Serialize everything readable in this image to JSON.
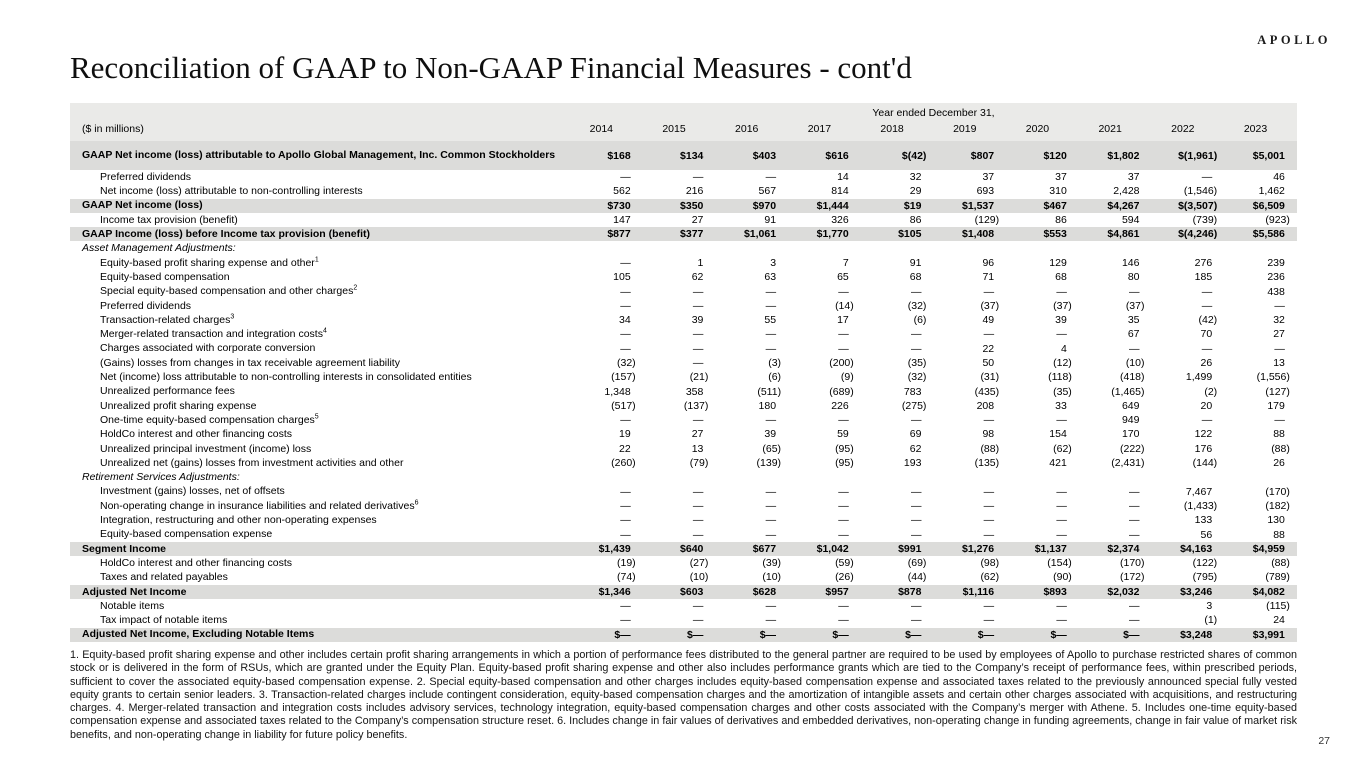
{
  "page": {
    "logo": "APOLLO",
    "title": "Reconciliation of GAAP to Non-GAAP Financial Measures - cont'd",
    "page_number": "27"
  },
  "table": {
    "header": {
      "group_label": "Year ended December 31,",
      "unit_label": "($ in millions)",
      "years": [
        "2014",
        "2015",
        "2016",
        "2017",
        "2018",
        "2019",
        "2020",
        "2021",
        "2022",
        "2023"
      ]
    },
    "rows": [
      {
        "label": "GAAP Net income (loss) attributable to Apollo Global Management, Inc. Common Stockholders",
        "style": "total",
        "values": [
          "$168",
          "$134",
          "$403",
          "$616",
          "$(42)",
          "$807",
          "$120",
          "$1,802",
          "$(1,961)",
          "$5,001"
        ]
      },
      {
        "label": "Preferred dividends",
        "style": "item",
        "values": [
          "—",
          "—",
          "—",
          "14",
          "32",
          "37",
          "37",
          "37",
          "—",
          "46"
        ]
      },
      {
        "label": "Net income (loss) attributable to non-controlling interests",
        "style": "item",
        "values": [
          "562",
          "216",
          "567",
          "814",
          "29",
          "693",
          "310",
          "2,428",
          "(1,546)",
          "1,462"
        ]
      },
      {
        "label": "GAAP Net income (loss)",
        "style": "total",
        "values": [
          "$730",
          "$350",
          "$970",
          "$1,444",
          "$19",
          "$1,537",
          "$467",
          "$4,267",
          "$(3,507)",
          "$6,509"
        ]
      },
      {
        "label": "Income tax provision (benefit)",
        "style": "item",
        "values": [
          "147",
          "27",
          "91",
          "326",
          "86",
          "(129)",
          "86",
          "594",
          "(739)",
          "(923)"
        ]
      },
      {
        "label": "GAAP Income (loss) before Income tax provision (benefit)",
        "style": "total",
        "values": [
          "$877",
          "$377",
          "$1,061",
          "$1,770",
          "$105",
          "$1,408",
          "$553",
          "$4,861",
          "$(4,246)",
          "$5,586"
        ]
      },
      {
        "label": "Asset Management Adjustments:",
        "style": "section"
      },
      {
        "label": "Equity-based profit sharing expense and other",
        "sup": "1",
        "style": "item",
        "values": [
          "—",
          "1",
          "3",
          "7",
          "91",
          "96",
          "129",
          "146",
          "276",
          "239"
        ]
      },
      {
        "label": "Equity-based compensation",
        "style": "item",
        "values": [
          "105",
          "62",
          "63",
          "65",
          "68",
          "71",
          "68",
          "80",
          "185",
          "236"
        ]
      },
      {
        "label": "Special equity-based compensation and other charges",
        "sup": "2",
        "style": "item",
        "values": [
          "—",
          "—",
          "—",
          "—",
          "—",
          "—",
          "—",
          "—",
          "—",
          "438"
        ]
      },
      {
        "label": "Preferred dividends",
        "style": "item",
        "values": [
          "—",
          "—",
          "—",
          "(14)",
          "(32)",
          "(37)",
          "(37)",
          "(37)",
          "—",
          "—"
        ]
      },
      {
        "label": "Transaction-related charges",
        "sup": "3",
        "style": "item",
        "values": [
          "34",
          "39",
          "55",
          "17",
          "(6)",
          "49",
          "39",
          "35",
          "(42)",
          "32"
        ]
      },
      {
        "label": "Merger-related transaction and integration costs",
        "sup": "4",
        "style": "item",
        "values": [
          "—",
          "—",
          "—",
          "—",
          "—",
          "—",
          "—",
          "67",
          "70",
          "27"
        ]
      },
      {
        "label": "Charges associated with corporate conversion",
        "style": "item",
        "values": [
          "—",
          "—",
          "—",
          "—",
          "—",
          "22",
          "4",
          "—",
          "—",
          "—"
        ]
      },
      {
        "label": "(Gains) losses from changes in tax receivable agreement liability",
        "style": "item",
        "values": [
          "(32)",
          "—",
          "(3)",
          "(200)",
          "(35)",
          "50",
          "(12)",
          "(10)",
          "26",
          "13"
        ]
      },
      {
        "label": "Net (income) loss attributable to non-controlling interests in consolidated entities",
        "style": "item",
        "values": [
          "(157)",
          "(21)",
          "(6)",
          "(9)",
          "(32)",
          "(31)",
          "(118)",
          "(418)",
          "1,499",
          "(1,556)"
        ]
      },
      {
        "label": "Unrealized performance fees",
        "style": "item",
        "values": [
          "1,348",
          "358",
          "(511)",
          "(689)",
          "783",
          "(435)",
          "(35)",
          "(1,465)",
          "(2)",
          "(127)"
        ]
      },
      {
        "label": "Unrealized profit sharing expense",
        "style": "item",
        "values": [
          "(517)",
          "(137)",
          "180",
          "226",
          "(275)",
          "208",
          "33",
          "649",
          "20",
          "179"
        ]
      },
      {
        "label": "One-time equity-based compensation charges",
        "sup": "5",
        "style": "item",
        "values": [
          "—",
          "—",
          "—",
          "—",
          "—",
          "—",
          "—",
          "949",
          "—",
          "—"
        ]
      },
      {
        "label": "HoldCo interest and other financing costs",
        "style": "item",
        "values": [
          "19",
          "27",
          "39",
          "59",
          "69",
          "98",
          "154",
          "170",
          "122",
          "88"
        ]
      },
      {
        "label": "Unrealized principal investment (income) loss",
        "style": "item",
        "values": [
          "22",
          "13",
          "(65)",
          "(95)",
          "62",
          "(88)",
          "(62)",
          "(222)",
          "176",
          "(88)"
        ]
      },
      {
        "label": "Unrealized net (gains) losses from investment activities and other",
        "style": "item",
        "values": [
          "(260)",
          "(79)",
          "(139)",
          "(95)",
          "193",
          "(135)",
          "421",
          "(2,431)",
          "(144)",
          "26"
        ]
      },
      {
        "label": "Retirement Services Adjustments:",
        "style": "section"
      },
      {
        "label": "Investment (gains) losses, net of offsets",
        "style": "item",
        "values": [
          "—",
          "—",
          "—",
          "—",
          "—",
          "—",
          "—",
          "—",
          "7,467",
          "(170)"
        ]
      },
      {
        "label": "Non-operating change in insurance liabilities and related derivatives",
        "sup": "6",
        "style": "item",
        "values": [
          "—",
          "—",
          "—",
          "—",
          "—",
          "—",
          "—",
          "—",
          "(1,433)",
          "(182)"
        ]
      },
      {
        "label": "Integration, restructuring and other non-operating expenses",
        "style": "item",
        "values": [
          "—",
          "—",
          "—",
          "—",
          "—",
          "—",
          "—",
          "—",
          "133",
          "130"
        ]
      },
      {
        "label": "Equity-based compensation expense",
        "style": "item",
        "values": [
          "—",
          "—",
          "—",
          "—",
          "—",
          "—",
          "—",
          "—",
          "56",
          "88"
        ]
      },
      {
        "label": "Segment Income",
        "style": "total",
        "values": [
          "$1,439",
          "$640",
          "$677",
          "$1,042",
          "$991",
          "$1,276",
          "$1,137",
          "$2,374",
          "$4,163",
          "$4,959"
        ]
      },
      {
        "label": "HoldCo interest and other financing costs",
        "style": "item",
        "values": [
          "(19)",
          "(27)",
          "(39)",
          "(59)",
          "(69)",
          "(98)",
          "(154)",
          "(170)",
          "(122)",
          "(88)"
        ]
      },
      {
        "label": "Taxes and related payables",
        "style": "item",
        "values": [
          "(74)",
          "(10)",
          "(10)",
          "(26)",
          "(44)",
          "(62)",
          "(90)",
          "(172)",
          "(795)",
          "(789)"
        ]
      },
      {
        "label": "Adjusted Net Income",
        "style": "total",
        "values": [
          "$1,346",
          "$603",
          "$628",
          "$957",
          "$878",
          "$1,116",
          "$893",
          "$2,032",
          "$3,246",
          "$4,082"
        ]
      },
      {
        "label": "Notable items",
        "style": "item",
        "values": [
          "—",
          "—",
          "—",
          "—",
          "—",
          "—",
          "—",
          "—",
          "3",
          "(115)"
        ]
      },
      {
        "label": "Tax impact of notable items",
        "style": "item",
        "values": [
          "—",
          "—",
          "—",
          "—",
          "—",
          "—",
          "—",
          "—",
          "(1)",
          "24"
        ]
      },
      {
        "label": "Adjusted Net Income, Excluding Notable Items",
        "style": "total",
        "values": [
          "$—",
          "$—",
          "$—",
          "$—",
          "$—",
          "$—",
          "$—",
          "$—",
          "$3,248",
          "$3,991"
        ]
      }
    ]
  },
  "footnotes": {
    "text": "1. Equity-based profit sharing expense and other includes certain profit sharing arrangements in which a portion of performance fees distributed to the general partner are required to be used by employees of Apollo to purchase restricted shares of common stock or is delivered in the form of RSUs, which are granted under the Equity Plan. Equity-based profit sharing expense and other also includes performance grants which are tied to the Company’s receipt of performance fees, within prescribed periods, sufficient to cover the associated equity-based compensation expense. 2. Special equity-based compensation and other charges includes equity-based compensation expense and associated taxes related to the previously announced special fully vested equity grants to certain senior leaders. 3. Transaction-related charges include contingent consideration, equity-based compensation charges and the amortization of intangible assets and certain other charges associated with acquisitions, and restructuring charges. 4. Merger-related transaction and integration costs includes advisory services, technology integration, equity-based compensation charges and other costs associated with the Company’s merger with Athene. 5. Includes one-time equity-based compensation expense and associated taxes related to the Company’s compensation structure reset. 6. Includes change in fair values of derivatives and embedded derivatives, non-operating change in funding agreements, change in fair value of market risk benefits, and non-operating change in liability for future policy benefits."
  },
  "colors": {
    "band": "#dcdcda",
    "header_bg": "#eaeae8",
    "text": "#000000"
  }
}
